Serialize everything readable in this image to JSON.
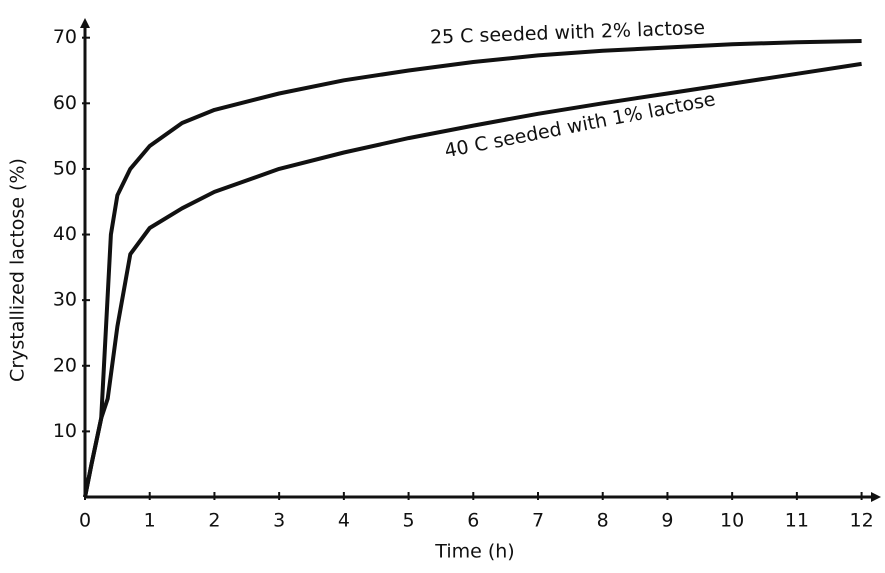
{
  "chart_data": {
    "type": "line",
    "x_label": "Time (h)",
    "y_label": "Crystallized lactose (%)",
    "xlim": [
      0,
      12.3
    ],
    "ylim": [
      0,
      73
    ],
    "xticks": [
      0,
      1,
      2,
      3,
      4,
      5,
      6,
      7,
      8,
      9,
      10,
      11,
      12
    ],
    "yticks": [
      10,
      20,
      30,
      40,
      50,
      60,
      70
    ],
    "grid": false,
    "series": [
      {
        "name": "25 C seeded with 2% lactose",
        "color": "#111111",
        "x": [
          0,
          0.1,
          0.25,
          0.4,
          0.5,
          0.7,
          1,
          1.5,
          2,
          3,
          4,
          5,
          6,
          7,
          8,
          9,
          10,
          11,
          12
        ],
        "values": [
          0,
          5,
          12,
          40,
          46,
          50,
          53.5,
          57,
          59,
          61.5,
          63.5,
          65,
          66.3,
          67.3,
          68,
          68.5,
          69,
          69.3,
          69.5
        ]
      },
      {
        "name": "40 C seeded with 1% lactose",
        "color": "#111111",
        "x": [
          0,
          0.1,
          0.25,
          0.35,
          0.5,
          0.7,
          1,
          1.5,
          2,
          3,
          4,
          5,
          6,
          7,
          8,
          9,
          10,
          11,
          12
        ],
        "values": [
          0,
          5,
          12,
          15,
          26,
          37,
          41,
          44,
          46.5,
          50,
          52.5,
          54.7,
          56.6,
          58.4,
          60,
          61.5,
          63,
          64.5,
          66
        ]
      }
    ]
  }
}
